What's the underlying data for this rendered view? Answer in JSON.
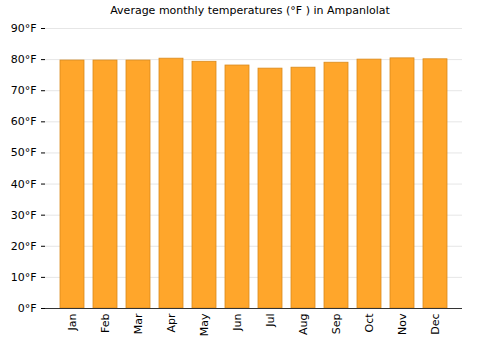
{
  "chart_data": {
    "type": "bar",
    "title": "Average monthly temperatures (°F ) in Ampanlolat",
    "categories": [
      "Jan",
      "Feb",
      "Mar",
      "Apr",
      "May",
      "Jun",
      "Jul",
      "Aug",
      "Sep",
      "Oct",
      "Nov",
      "Dec"
    ],
    "values": [
      79.7,
      79.7,
      79.7,
      80.3,
      79.3,
      78.1,
      77.1,
      77.4,
      79.0,
      80.0,
      80.4,
      80.1
    ],
    "color": "#ffa62b",
    "ylim": [
      0,
      90
    ],
    "yticks": [
      {
        "value": 0,
        "label": "0°F"
      },
      {
        "value": 10,
        "label": "10°F"
      },
      {
        "value": 20,
        "label": "20°F"
      },
      {
        "value": 30,
        "label": "30°F"
      },
      {
        "value": 40,
        "label": "40°F"
      },
      {
        "value": 50,
        "label": "50°F"
      },
      {
        "value": 60,
        "label": "60°F"
      },
      {
        "value": 70,
        "label": "70°F"
      },
      {
        "value": 80,
        "label": "80°F"
      },
      {
        "value": 90,
        "label": "90°F"
      }
    ],
    "grid": true
  }
}
